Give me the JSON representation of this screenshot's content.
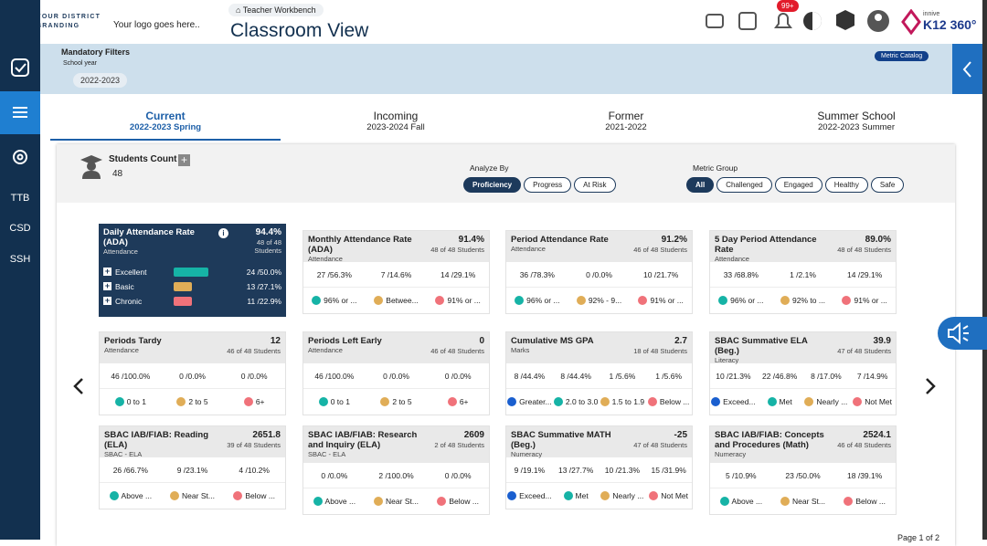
{
  "header": {
    "brand": [
      "YOUR DISTRICT",
      "BRANDING"
    ],
    "logo_text": "Your logo goes here..",
    "breadcrumb": "Teacher Workbench",
    "title": "Classroom View",
    "notifications": "99+",
    "product": "innive",
    "product_name": "K12 360°"
  },
  "sidebar": [
    "TTB",
    "CSD",
    "SSH"
  ],
  "filters": {
    "title": "Mandatory Filters",
    "label": "School year",
    "value": "2022-2023",
    "metric_catalog": "Metric Catalog"
  },
  "tabs": [
    {
      "name": "Current",
      "term": "2022-2023 Spring"
    },
    {
      "name": "Incoming",
      "term": "2023-2024 Fall"
    },
    {
      "name": "Former",
      "term": "2021-2022"
    },
    {
      "name": "Summer School",
      "term": "2022-2023 Summer"
    }
  ],
  "students": {
    "label": "Students Count",
    "count": "48"
  },
  "analyze_by": {
    "label": "Analyze By",
    "options": [
      "Proficiency",
      "Progress",
      "At Risk"
    ]
  },
  "metric_group": {
    "label": "Metric Group",
    "options": [
      "All",
      "Challenged",
      "Engaged",
      "Healthy",
      "Safe"
    ]
  },
  "cards": [
    {
      "title": "Daily Attendance Rate (ADA)",
      "value": "94.4%",
      "students": "48 of 48 Students",
      "category": "Attendance",
      "rows": [
        {
          "name": "Excellent",
          "value": "24 /50.0%"
        },
        {
          "name": "Basic",
          "value": "13 /27.1%"
        },
        {
          "name": "Chronic",
          "value": "11 /22.9%"
        }
      ]
    },
    {
      "title": "Monthly Attendance Rate (ADA)",
      "value": "91.4%",
      "students": "48 of 48 Students",
      "category": "Attendance",
      "cells": [
        "27 /56.3%",
        "7 /14.6%",
        "14 /29.1%"
      ],
      "legend": [
        "96% or ...",
        "Betwee...",
        "91% or ..."
      ]
    },
    {
      "title": "Period Attendance Rate",
      "value": "91.2%",
      "students": "46 of 48 Students",
      "category": "Attendance",
      "cells": [
        "36 /78.3%",
        "0 /0.0%",
        "10 /21.7%"
      ],
      "legend": [
        "96% or ...",
        "92% - 9...",
        "91% or ..."
      ]
    },
    {
      "title": "5 Day Period Attendance Rate",
      "value": "89.0%",
      "students": "48 of 48 Students",
      "category": "Attendance",
      "cells": [
        "33 /68.8%",
        "1 /2.1%",
        "14 /29.1%"
      ],
      "legend": [
        "96% or ...",
        "92% to ...",
        "91% or ..."
      ]
    },
    {
      "title": "Periods Tardy",
      "value": "12",
      "students": "46 of 48 Students",
      "category": "Attendance",
      "cells": [
        "46 /100.0%",
        "0 /0.0%",
        "0 /0.0%"
      ],
      "legend": [
        "0 to 1",
        "2 to 5",
        "6+"
      ]
    },
    {
      "title": "Periods Left Early",
      "value": "0",
      "students": "46 of 48 Students",
      "category": "Attendance",
      "cells": [
        "46 /100.0%",
        "0 /0.0%",
        "0 /0.0%"
      ],
      "legend": [
        "0 to 1",
        "2 to 5",
        "6+"
      ]
    },
    {
      "title": "Cumulative MS GPA",
      "value": "2.7",
      "students": "18 of 48 Students",
      "category": "Marks",
      "cells": [
        "8 /44.4%",
        "8 /44.4%",
        "1 /5.6%",
        "1 /5.6%"
      ],
      "legend": [
        "Greater...",
        "2.0 to 3.0",
        "1.5 to 1.9",
        "Below ..."
      ]
    },
    {
      "title": "SBAC Summative ELA (Beg.)",
      "value": "39.9",
      "students": "47 of 48 Students",
      "category": "Literacy",
      "cells": [
        "10 /21.3%",
        "22 /46.8%",
        "8 /17.0%",
        "7 /14.9%"
      ],
      "legend": [
        "Exceed...",
        "Met",
        "Nearly ...",
        "Not Met"
      ]
    },
    {
      "title": "SBAC IAB/FIAB: Reading (ELA)",
      "value": "2651.8",
      "students": "39 of 48 Students",
      "category": "SBAC - ELA",
      "cells": [
        "26 /66.7%",
        "9 /23.1%",
        "4 /10.2%"
      ],
      "legend": [
        "Above ...",
        "Near St...",
        "Below ..."
      ]
    },
    {
      "title": "SBAC IAB/FIAB: Research and Inquiry (ELA)",
      "value": "2609",
      "students": "2 of 48 Students",
      "category": "SBAC - ELA",
      "cells": [
        "0 /0.0%",
        "2 /100.0%",
        "0 /0.0%"
      ],
      "legend": [
        "Above ...",
        "Near St...",
        "Below ..."
      ]
    },
    {
      "title": "SBAC Summative MATH (Beg.)",
      "value": "-25",
      "students": "47 of 48 Students",
      "category": "Numeracy",
      "cells": [
        "9 /19.1%",
        "13 /27.7%",
        "10 /21.3%",
        "15 /31.9%"
      ],
      "legend": [
        "Exceed...",
        "Met",
        "Nearly ...",
        "Not Met"
      ]
    },
    {
      "title": "SBAC IAB/FIAB: Concepts and Procedures (Math)",
      "value": "2524.1",
      "students": "46 of 48 Students",
      "category": "Numeracy",
      "cells": [
        "5 /10.9%",
        "23 /50.0%",
        "18 /39.1%"
      ],
      "legend": [
        "Above ...",
        "Near St...",
        "Below ..."
      ]
    }
  ],
  "pagination": "Page 1 of 2"
}
